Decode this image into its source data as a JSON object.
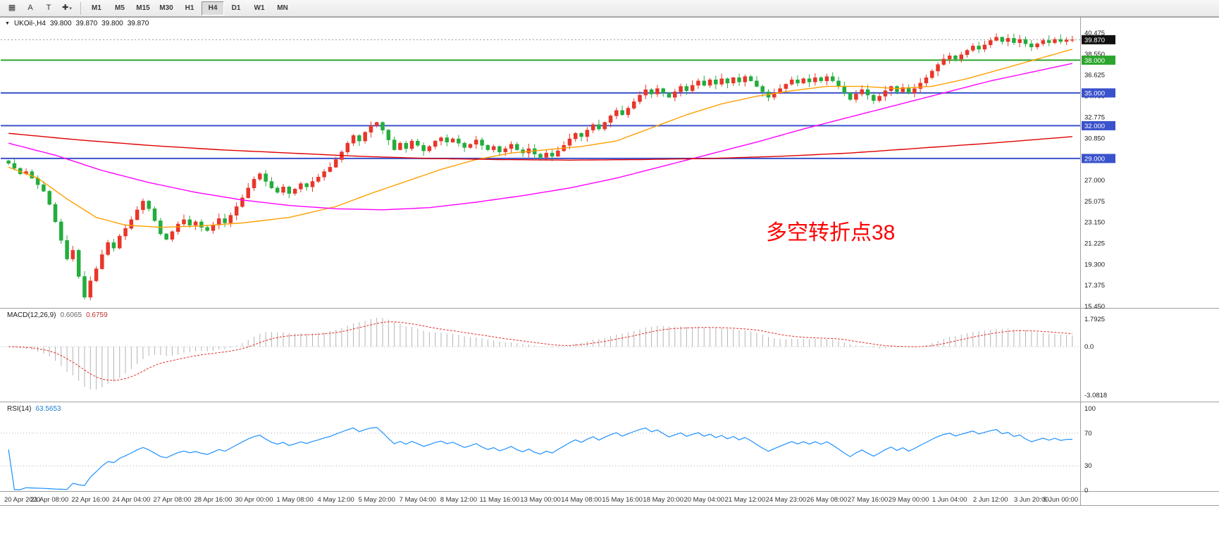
{
  "toolbar": {
    "tools": [
      {
        "name": "chart-grid",
        "glyph": "▦",
        "caret": false
      },
      {
        "name": "cursor-select",
        "glyph": "A",
        "caret": false
      },
      {
        "name": "text-tool",
        "glyph": "T",
        "caret": false
      },
      {
        "name": "crosshair",
        "glyph": "✚",
        "caret": true
      }
    ],
    "timeframes": [
      "M1",
      "M5",
      "M15",
      "M30",
      "H1",
      "H4",
      "D1",
      "W1",
      "MN"
    ],
    "active_timeframe": "H4"
  },
  "chart": {
    "title": {
      "symbol_period": "UKOil-,H4",
      "open": "39.800",
      "high": "39.870",
      "low": "39.800",
      "close": "39.870"
    },
    "annotation": {
      "text": "多空转折点38",
      "color": "#ff0000"
    }
  },
  "chart_data": {
    "type": "candlestick",
    "symbol": "UKOil-",
    "timeframe": "H4",
    "title": "UKOil-,H4 39.800 39.870 39.800 39.870",
    "current_price": {
      "label": "39.870",
      "value": 39.87
    },
    "price_scale": {
      "labels": [
        "40.475",
        "38.550",
        "36.625",
        "34.700",
        "32.775",
        "30.850",
        "28.925",
        "27.000",
        "25.075",
        "23.150",
        "21.225",
        "19.300",
        "17.375",
        "15.450"
      ],
      "values": [
        40.475,
        38.55,
        36.625,
        34.7,
        32.775,
        30.85,
        28.925,
        27.0,
        25.075,
        23.15,
        21.225,
        19.3,
        17.375,
        15.45
      ]
    },
    "levels": [
      {
        "label": "38.000",
        "price": 38.0,
        "color": "#2ca52c"
      },
      {
        "label": "35.000",
        "price": 35.0,
        "color": "#3a52cc"
      },
      {
        "label": "32.000",
        "price": 32.0,
        "color": "#3a52cc"
      },
      {
        "label": "29.000",
        "price": 29.0,
        "color": "#3a52cc"
      }
    ],
    "closes": [
      28.55,
      28.1,
      27.6,
      27.8,
      27.2,
      26.6,
      26.0,
      24.8,
      23.2,
      21.5,
      19.8,
      20.6,
      18.2,
      16.3,
      17.8,
      18.9,
      20.2,
      21.3,
      20.8,
      21.9,
      22.6,
      23.4,
      24.3,
      25.1,
      24.4,
      23.3,
      22.1,
      21.6,
      22.3,
      23.0,
      23.4,
      22.9,
      23.2,
      22.7,
      22.4,
      22.9,
      23.5,
      23.1,
      23.8,
      24.6,
      25.4,
      26.3,
      27.1,
      27.6,
      26.9,
      26.3,
      25.9,
      26.4,
      25.8,
      26.2,
      26.7,
      26.4,
      26.9,
      27.3,
      27.8,
      28.2,
      28.9,
      29.6,
      30.4,
      31.1,
      30.6,
      31.4,
      32.0,
      32.3,
      31.6,
      30.7,
      29.8,
      30.4,
      29.9,
      30.6,
      30.2,
      29.7,
      30.1,
      30.6,
      30.9,
      30.5,
      30.8,
      30.4,
      30.0,
      30.3,
      30.7,
      30.2,
      29.8,
      30.1,
      29.6,
      29.9,
      30.3,
      29.8,
      29.5,
      29.9,
      29.4,
      29.1,
      29.5,
      29.2,
      29.7,
      30.2,
      30.8,
      31.3,
      31.0,
      31.6,
      32.1,
      31.7,
      32.3,
      32.9,
      33.4,
      33.0,
      33.6,
      34.2,
      34.8,
      35.3,
      34.9,
      35.4,
      35.0,
      34.6,
      35.1,
      35.6,
      35.2,
      35.7,
      36.1,
      35.7,
      36.2,
      35.8,
      36.3,
      35.9,
      36.4,
      36.0,
      36.5,
      36.1,
      35.6,
      35.1,
      34.6,
      35.0,
      35.4,
      35.8,
      36.2,
      35.9,
      36.3,
      36.0,
      36.4,
      36.1,
      36.5,
      36.1,
      35.6,
      35.0,
      34.4,
      34.9,
      35.3,
      34.8,
      34.3,
      34.7,
      35.2,
      35.6,
      35.1,
      35.5,
      35.0,
      35.4,
      35.9,
      36.4,
      37.0,
      37.6,
      38.1,
      38.4,
      38.1,
      38.5,
      38.9,
      39.3,
      39.0,
      39.4,
      39.8,
      40.1,
      39.7,
      40.0,
      39.6,
      39.9,
      39.5,
      39.2,
      39.5,
      39.8,
      39.6,
      39.9,
      39.7,
      39.85,
      39.87
    ],
    "first_open": 28.8,
    "time_labels": [
      "20 Apr 2020",
      "21 Apr 08:00",
      "22 Apr 16:00",
      "24 Apr 04:00",
      "27 Apr 08:00",
      "28 Apr 16:00",
      "30 Apr 00:00",
      "1 May 08:00",
      "4 May 12:00",
      "5 May 20:00",
      "7 May 04:00",
      "8 May 12:00",
      "11 May 16:00",
      "13 May 00:00",
      "14 May 08:00",
      "15 May 16:00",
      "18 May 20:00",
      "20 May 04:00",
      "21 May 12:00",
      "24 May 23:00",
      "26 May 08:00",
      "27 May 16:00",
      "29 May 00:00",
      "1 Jun 04:00",
      "2 Jun 12:00",
      "3 Jun 20:00",
      "5 Jun 00:00"
    ],
    "candles_per_label": 7,
    "moving_averages": [
      {
        "name": "ma-fast",
        "color": "#ff9f00",
        "points": [
          [
            0,
            28.2
          ],
          [
            5,
            27.2
          ],
          [
            10,
            25.3
          ],
          [
            15,
            23.6
          ],
          [
            20,
            22.9
          ],
          [
            26,
            22.7
          ],
          [
            32,
            22.8
          ],
          [
            40,
            23.1
          ],
          [
            48,
            23.6
          ],
          [
            56,
            24.6
          ],
          [
            62,
            25.8
          ],
          [
            68,
            26.9
          ],
          [
            74,
            28.0
          ],
          [
            80,
            28.9
          ],
          [
            86,
            29.5
          ],
          [
            92,
            29.8
          ],
          [
            98,
            30.1
          ],
          [
            104,
            30.6
          ],
          [
            110,
            31.8
          ],
          [
            116,
            33.0
          ],
          [
            122,
            34.0
          ],
          [
            128,
            34.7
          ],
          [
            134,
            35.2
          ],
          [
            140,
            35.6
          ],
          [
            146,
            35.6
          ],
          [
            152,
            35.4
          ],
          [
            158,
            35.6
          ],
          [
            164,
            36.3
          ],
          [
            170,
            37.2
          ],
          [
            176,
            38.1
          ],
          [
            182,
            39.0
          ]
        ]
      },
      {
        "name": "ma-mid",
        "color": "#ff00ff",
        "points": [
          [
            0,
            30.4
          ],
          [
            8,
            29.3
          ],
          [
            16,
            27.9
          ],
          [
            24,
            26.8
          ],
          [
            32,
            25.9
          ],
          [
            40,
            25.2
          ],
          [
            48,
            24.7
          ],
          [
            56,
            24.4
          ],
          [
            64,
            24.3
          ],
          [
            72,
            24.5
          ],
          [
            80,
            25.0
          ],
          [
            88,
            25.6
          ],
          [
            96,
            26.3
          ],
          [
            104,
            27.2
          ],
          [
            112,
            28.3
          ],
          [
            120,
            29.4
          ],
          [
            128,
            30.5
          ],
          [
            136,
            31.7
          ],
          [
            144,
            32.8
          ],
          [
            152,
            33.9
          ],
          [
            160,
            35.0
          ],
          [
            168,
            36.1
          ],
          [
            175,
            36.9
          ],
          [
            182,
            37.7
          ]
        ]
      },
      {
        "name": "ma-slow",
        "color": "#e00000",
        "points": [
          [
            0,
            31.3
          ],
          [
            12,
            30.7
          ],
          [
            24,
            30.2
          ],
          [
            36,
            29.8
          ],
          [
            48,
            29.5
          ],
          [
            60,
            29.2
          ],
          [
            72,
            29.0
          ],
          [
            84,
            28.9
          ],
          [
            96,
            28.85
          ],
          [
            108,
            28.9
          ],
          [
            120,
            29.0
          ],
          [
            132,
            29.2
          ],
          [
            144,
            29.5
          ],
          [
            152,
            29.8
          ],
          [
            160,
            30.1
          ],
          [
            168,
            30.4
          ],
          [
            175,
            30.7
          ],
          [
            182,
            31.0
          ]
        ]
      }
    ],
    "macd": {
      "name": "MACD(12,26,9)",
      "value_main": "0.6065",
      "value_signal": "0.6759",
      "params": [
        12,
        26,
        9
      ],
      "scale_labels": [
        "1.7925",
        "0.0",
        "-3.0818"
      ],
      "scale_values": [
        1.7925,
        0.0,
        -3.0818
      ]
    },
    "rsi": {
      "name": "RSI(14)",
      "value": "63.5653",
      "period": 14,
      "scale_labels": [
        "100",
        "70",
        "30",
        "0"
      ],
      "scale_values": [
        100,
        70,
        30,
        0
      ],
      "levels": [
        70,
        30
      ]
    },
    "colors": {
      "bull": "#e8362a",
      "bear": "#23ad3d",
      "ma_fast": "#ff9f00",
      "ma_mid": "#ff00ff",
      "ma_slow": "#e00000",
      "macd_hist": "#b4b4b4",
      "macd_signal": "#e03030",
      "rsi_line": "#1e90ff",
      "level_green": "#2ca52c",
      "level_blue": "#3a52cc",
      "current_badge": "#111111",
      "annotation": "#ff0000"
    }
  }
}
